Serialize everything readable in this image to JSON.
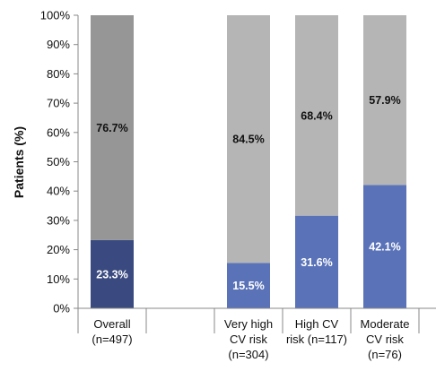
{
  "chart_data": {
    "type": "bar",
    "stacked": true,
    "percent_scale": true,
    "ylabel": "Patients (%)",
    "ylim": [
      0,
      100
    ],
    "y_ticks": [
      "0%",
      "10%",
      "20%",
      "30%",
      "40%",
      "50%",
      "60%",
      "70%",
      "80%",
      "90%",
      "100%"
    ],
    "grid": false,
    "legend": "none",
    "categories": [
      {
        "lines": [
          "Overall",
          "(n=497)"
        ]
      },
      {
        "lines": [
          "",
          ""
        ]
      },
      {
        "lines": [
          "Very high",
          "CV risk",
          "(n=304)"
        ]
      },
      {
        "lines": [
          "High          CV",
          "risk (n=117)"
        ]
      },
      {
        "lines": [
          "Moderate",
          "CV risk",
          "(n=76)"
        ]
      }
    ],
    "series": [
      {
        "values": [
          23.3,
          null,
          15.5,
          31.6,
          42.1
        ],
        "labels": [
          "23.3%",
          "",
          "15.5%",
          "31.6%",
          "42.1%"
        ],
        "colors": [
          "#3a4a80",
          null,
          "#5a72b8",
          "#5a72b8",
          "#5a72b8"
        ],
        "label_color": "#ffffff"
      },
      {
        "values": [
          76.7,
          null,
          84.5,
          68.4,
          57.9
        ],
        "labels": [
          "76.7%",
          "",
          "84.5%",
          "68.4%",
          "57.9%"
        ],
        "colors": [
          "#969696",
          null,
          "#b5b5b5",
          "#b5b5b5",
          "#b5b5b5"
        ],
        "label_color": "#111111"
      }
    ]
  }
}
